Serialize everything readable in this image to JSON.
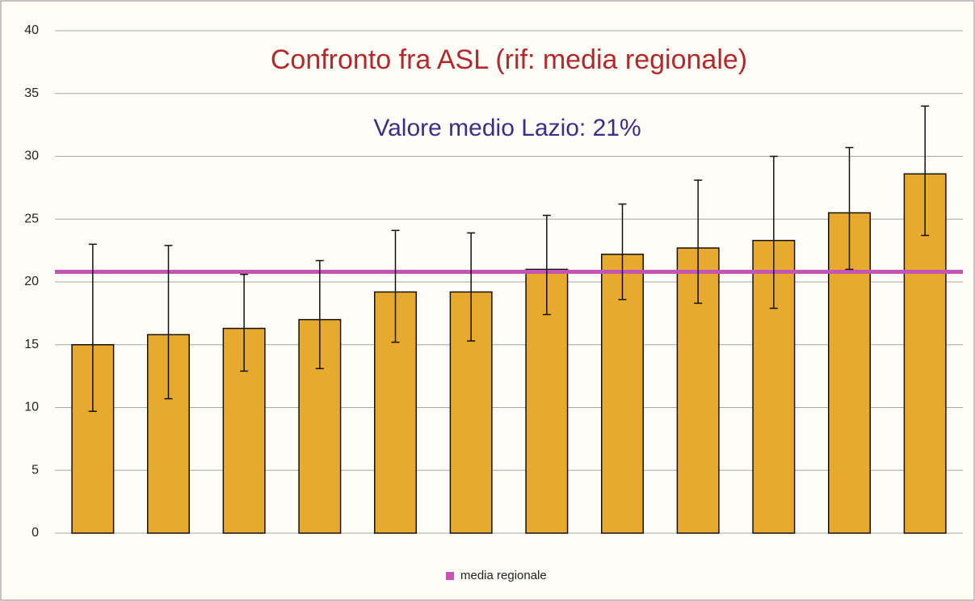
{
  "chart_data": {
    "type": "bar",
    "title": "Confronto fra ASL (rif: media regionale)",
    "subtitle": "Valore medio Lazio: 21%",
    "categories": [
      null,
      null,
      null,
      null,
      null,
      null,
      null,
      null,
      null,
      null,
      null,
      null
    ],
    "values": [
      15.0,
      15.8,
      16.3,
      17.0,
      19.2,
      19.2,
      21.0,
      22.2,
      22.7,
      23.3,
      25.5,
      28.6
    ],
    "ci_low": [
      9.7,
      10.7,
      12.9,
      13.1,
      15.2,
      15.3,
      17.4,
      18.6,
      18.3,
      17.9,
      21.0,
      23.7
    ],
    "ci_high": [
      23.0,
      22.9,
      20.6,
      21.7,
      24.1,
      23.9,
      25.3,
      26.2,
      28.1,
      30.0,
      30.7,
      34.0
    ],
    "color": "#e8aa2e",
    "reference_line": {
      "name": "media regionale",
      "value": 20.8,
      "color": "#c455b5"
    },
    "ylim": [
      0,
      40
    ],
    "yticks": [
      0,
      5,
      10,
      15,
      20,
      25,
      30,
      35,
      40
    ],
    "grid": true
  }
}
